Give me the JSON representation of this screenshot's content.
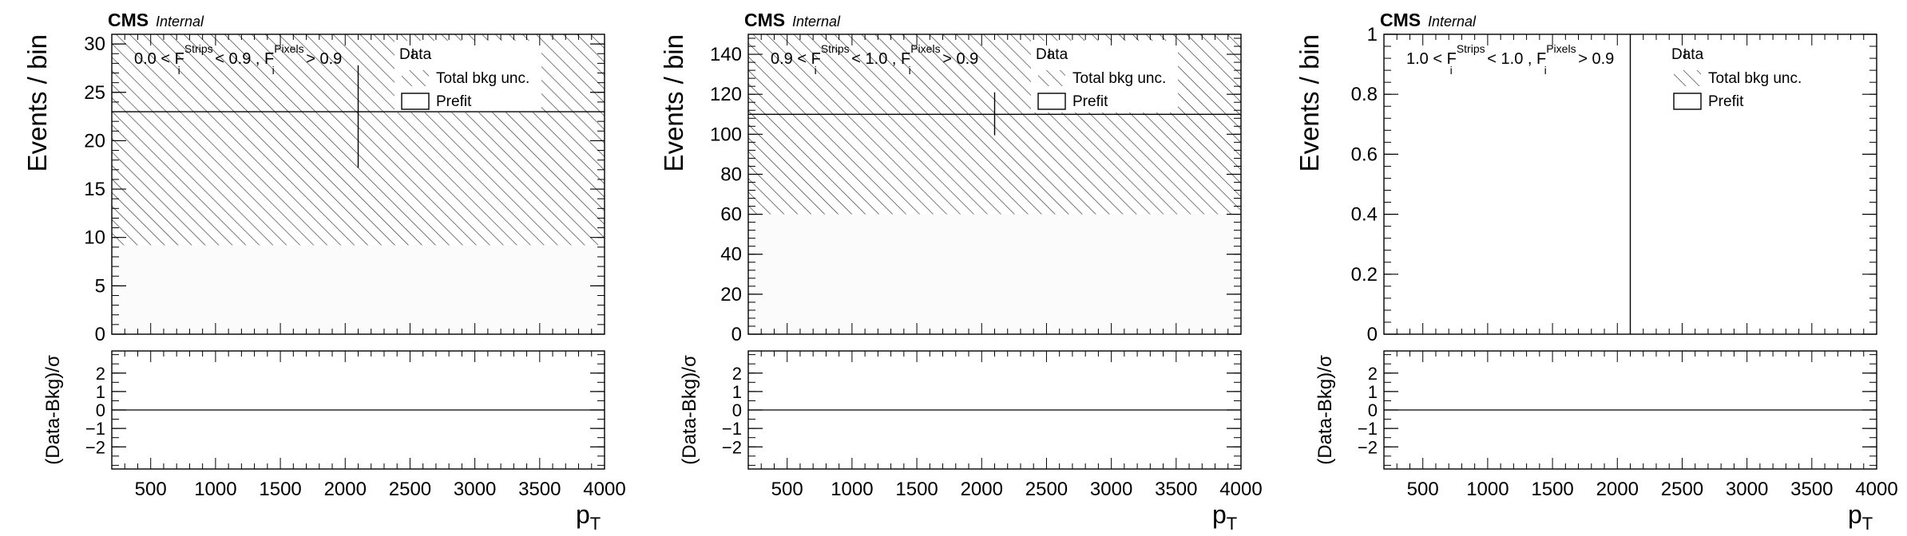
{
  "chart_data": [
    {
      "type": "bar",
      "experiment_label": "CMS",
      "status_label": "Internal",
      "region_label": {
        "prefix": "0.0 < F",
        "sup1": "Strips",
        "sub1": "i",
        "middle": " < 0.9 , F",
        "sup2": "Pixels",
        "sub2": "i",
        "suffix": " > 0.9"
      },
      "ylabel": "Events / bin",
      "ylim": [
        0,
        31
      ],
      "yticks": [
        0,
        5,
        10,
        15,
        20,
        25,
        30
      ],
      "xlabel": {
        "main": "p",
        "sub": "T"
      },
      "xlim": [
        200,
        4000
      ],
      "xticks": [
        500,
        1000,
        1500,
        2000,
        2500,
        3000,
        3500,
        4000
      ],
      "legend": [
        "Data",
        "Total bkg unc.",
        "Prefit"
      ],
      "legend_position": "top-right",
      "prefit": {
        "x": [
          200,
          4000
        ],
        "value": 9.2
      },
      "total_bkg_unc": {
        "x": [
          200,
          4000
        ],
        "low": 9.2,
        "high": 31
      },
      "data_points": [
        {
          "x": 2100,
          "xerr": [
            200,
            4000
          ],
          "y": 23,
          "yerr": [
            17.2,
            27.8
          ]
        }
      ],
      "ratio_panel": {
        "ylabel": "(Data-Bkg)/σ",
        "ylim": [
          -3.2,
          3.2
        ],
        "yticks": [
          -2,
          -1,
          0,
          1,
          2
        ],
        "reference_line": 0
      }
    },
    {
      "type": "bar",
      "experiment_label": "CMS",
      "status_label": "Internal",
      "region_label": {
        "prefix": "0.9 < F",
        "sup1": "Strips",
        "sub1": "i",
        "middle": " < 1.0 , F",
        "sup2": "Pixels",
        "sub2": "i",
        "suffix": " > 0.9"
      },
      "ylabel": "Events / bin",
      "ylim": [
        0,
        150
      ],
      "yticks": [
        0,
        20,
        40,
        60,
        80,
        100,
        120,
        140
      ],
      "xlabel": {
        "main": "p",
        "sub": "T"
      },
      "xlim": [
        200,
        4000
      ],
      "xticks": [
        500,
        1000,
        1500,
        2000,
        2500,
        3000,
        3500,
        4000
      ],
      "legend": [
        "Data",
        "Total bkg unc.",
        "Prefit"
      ],
      "legend_position": "top-right",
      "prefit": {
        "x": [
          200,
          4000
        ],
        "value": 60
      },
      "total_bkg_unc": {
        "x": [
          200,
          4000
        ],
        "low": 60,
        "high": 150
      },
      "data_points": [
        {
          "x": 2100,
          "xerr": [
            200,
            4000
          ],
          "y": 110,
          "yerr": [
            99.5,
            121
          ]
        }
      ],
      "ratio_panel": {
        "ylabel": "(Data-Bkg)/σ",
        "ylim": [
          -3.2,
          3.2
        ],
        "yticks": [
          -2,
          -1,
          0,
          1,
          2
        ],
        "reference_line": 0
      }
    },
    {
      "type": "bar",
      "experiment_label": "CMS",
      "status_label": "Internal",
      "region_label": {
        "prefix": "1.0 < F",
        "sup1": "Strips",
        "sub1": "i",
        "middle": " < 1.0 , F",
        "sup2": "Pixels",
        "sub2": "i",
        "suffix": " > 0.9"
      },
      "ylabel": "Events / bin",
      "ylim": [
        0,
        1
      ],
      "yticks": [
        0,
        0.2,
        0.4,
        0.6,
        0.8,
        1
      ],
      "xlabel": {
        "main": "p",
        "sub": "T"
      },
      "xlim": [
        200,
        4000
      ],
      "xticks": [
        500,
        1000,
        1500,
        2000,
        2500,
        3000,
        3500,
        4000
      ],
      "legend": [
        "Data",
        "Total bkg unc.",
        "Prefit"
      ],
      "legend_position": "top-right",
      "prefit": null,
      "total_bkg_unc": null,
      "data_points": [
        {
          "x": 2100,
          "xerr": null,
          "y": 0,
          "yerr": [
            0,
            1
          ]
        }
      ],
      "ratio_panel": {
        "ylabel": "(Data-Bkg)/σ",
        "ylim": [
          -3.2,
          3.2
        ],
        "yticks": [
          -2,
          -1,
          0,
          1,
          2
        ],
        "reference_line": 0
      }
    }
  ]
}
